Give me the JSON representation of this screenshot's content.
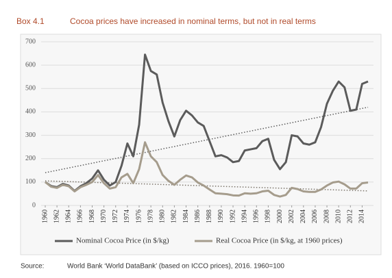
{
  "chart_data": {
    "type": "line",
    "label": "Box 4.1",
    "title": "Cocoa prices have increased in nominal terms, but not in real terms",
    "source_label": "Source:",
    "source": "World Bank ‘World DataBank’ (based on ICCO prices), 2016. 1960=100",
    "x": [
      1960,
      1961,
      1962,
      1963,
      1964,
      1965,
      1966,
      1967,
      1968,
      1969,
      1970,
      1971,
      1972,
      1973,
      1974,
      1975,
      1976,
      1977,
      1978,
      1979,
      1980,
      1981,
      1982,
      1983,
      1984,
      1985,
      1986,
      1987,
      1988,
      1989,
      1990,
      1991,
      1992,
      1993,
      1994,
      1995,
      1996,
      1997,
      1998,
      1999,
      2000,
      2001,
      2002,
      2003,
      2004,
      2005,
      2006,
      2007,
      2008,
      2009,
      2010,
      2011,
      2012,
      2013,
      2014,
      2015
    ],
    "series": [
      {
        "name": "Nominal Cocoa Price (in $/kg)",
        "color": "#5b5b5b",
        "values": [
          100,
          83,
          78,
          92,
          85,
          62,
          82,
          95,
          115,
          150,
          110,
          85,
          100,
          170,
          265,
          210,
          345,
          645,
          575,
          560,
          440,
          360,
          295,
          365,
          405,
          385,
          355,
          340,
          275,
          210,
          215,
          205,
          185,
          190,
          235,
          240,
          245,
          275,
          285,
          195,
          155,
          185,
          300,
          295,
          265,
          260,
          270,
          335,
          435,
          490,
          530,
          505,
          405,
          410,
          520,
          530
        ]
      },
      {
        "name": "Real Cocoa Price (in $/kg, at 1960 prices)",
        "color": "#a59c8c",
        "values": [
          100,
          80,
          75,
          88,
          82,
          60,
          78,
          88,
          100,
          130,
          95,
          72,
          78,
          120,
          135,
          95,
          155,
          270,
          210,
          185,
          130,
          105,
          88,
          110,
          128,
          120,
          98,
          85,
          68,
          52,
          50,
          48,
          43,
          42,
          52,
          50,
          52,
          60,
          63,
          45,
          38,
          45,
          75,
          70,
          60,
          58,
          58,
          68,
          85,
          98,
          102,
          90,
          72,
          72,
          95,
          98
        ]
      }
    ],
    "trendlines": [
      {
        "x": [
          1960,
          2015
        ],
        "values": [
          140,
          420
        ],
        "color": "#5b5b5b"
      },
      {
        "x": [
          1960,
          2015
        ],
        "values": [
          105,
          62
        ],
        "color": "#7a7368"
      }
    ],
    "xlim": [
      1960,
      2015
    ],
    "xticks": [
      1960,
      1962,
      1964,
      1966,
      1968,
      1970,
      1972,
      1974,
      1976,
      1978,
      1980,
      1982,
      1984,
      1986,
      1988,
      1990,
      1992,
      1994,
      1996,
      1998,
      2000,
      2002,
      2004,
      2006,
      2008,
      2010,
      2012,
      2014
    ],
    "ylim": [
      0,
      700
    ],
    "yticks": [
      0,
      100,
      200,
      300,
      400,
      500,
      600,
      700
    ],
    "grid": true
  }
}
